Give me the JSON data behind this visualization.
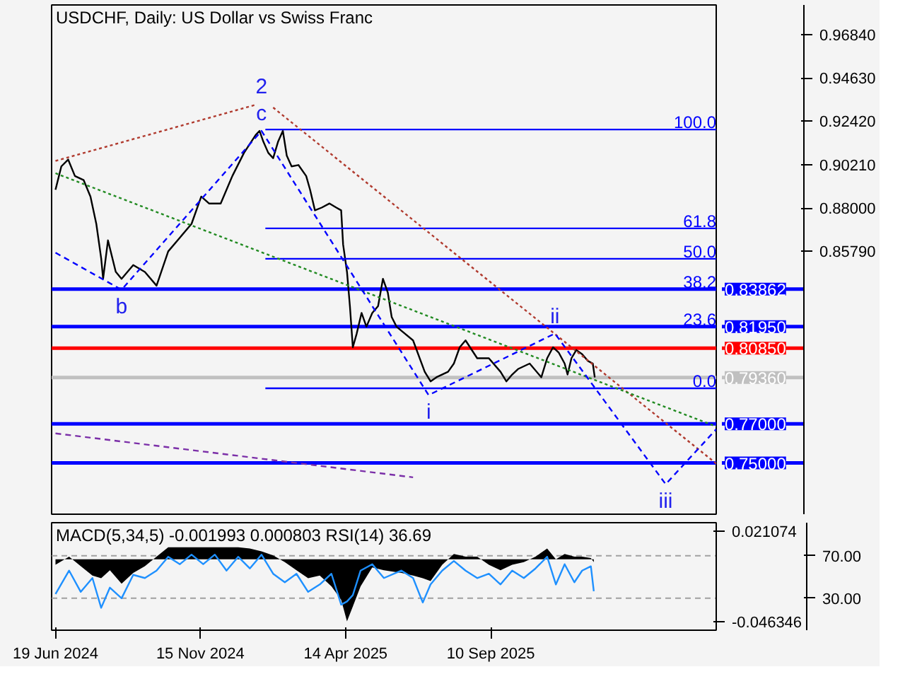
{
  "chart_data": [
    {
      "type": "line",
      "title": "USDCHF, Daily:  US Dollar vs Swiss Franc",
      "xlim": [
        "2024-06-15",
        "2026-04-30"
      ],
      "ylim": [
        0.7239,
        0.9835
      ],
      "yticks": [
        {
          "value": 0.9684,
          "label": "0.96840"
        },
        {
          "value": 0.9463,
          "label": "0.94630"
        },
        {
          "value": 0.9242,
          "label": "0.92420"
        },
        {
          "value": 0.9021,
          "label": "0.90210"
        },
        {
          "value": 0.88,
          "label": "0.88000"
        },
        {
          "value": 0.8579,
          "label": "0.85790"
        }
      ],
      "tick_labels": "y",
      "grid": false,
      "series": [
        {
          "color": "#000000",
          "line_style": "solid",
          "x": [
            "2024-06-19",
            "2024-06-25",
            "2024-07-02",
            "2024-07-09",
            "2024-07-18",
            "2024-07-25",
            "2024-07-31",
            "2024-08-05",
            "2024-08-07",
            "2024-08-12",
            "2024-08-20",
            "2024-08-26",
            "2024-09-07",
            "2024-09-19",
            "2024-10-01",
            "2024-10-13",
            "2024-10-25",
            "2024-11-06",
            "2024-11-16",
            "2024-11-24",
            "2024-12-06",
            "2024-12-18",
            "2024-12-30",
            "2025-01-11",
            "2025-01-15",
            "2025-01-19",
            "2025-01-24",
            "2025-01-29",
            "2025-02-03",
            "2025-02-08",
            "2025-02-12",
            "2025-02-17",
            "2025-02-24",
            "2025-03-04",
            "2025-03-08",
            "2025-03-13",
            "2025-03-20",
            "2025-03-28",
            "2025-04-04",
            "2025-04-09",
            "2025-04-11",
            "2025-04-15",
            "2025-04-18",
            "2025-04-21",
            "2025-04-25",
            "2025-04-30",
            "2025-05-05",
            "2025-05-11",
            "2025-05-17",
            "2025-05-22",
            "2025-05-27",
            "2025-05-31",
            "2025-06-05",
            "2025-06-10",
            "2025-06-22",
            "2025-07-04",
            "2025-07-10",
            "2025-07-16",
            "2025-07-28",
            "2025-08-03",
            "2025-08-09",
            "2025-08-15",
            "2025-08-27",
            "2025-09-08",
            "2025-09-20",
            "2025-09-26",
            "2025-10-02",
            "2025-10-08",
            "2025-10-20",
            "2025-11-01",
            "2025-11-07",
            "2025-11-13",
            "2025-11-19",
            "2025-11-25",
            "2025-11-28",
            "2025-12-02",
            "2025-12-07",
            "2025-12-13",
            "2025-12-19",
            "2025-12-24",
            "2025-12-26"
          ],
          "values": [
            0.8893,
            0.9012,
            0.9047,
            0.8963,
            0.8942,
            0.8858,
            0.8719,
            0.8544,
            0.8439,
            0.8635,
            0.8475,
            0.8439,
            0.8509,
            0.8474,
            0.8404,
            0.8579,
            0.8649,
            0.8719,
            0.8858,
            0.8823,
            0.8823,
            0.8963,
            0.9081,
            0.9172,
            0.9193,
            0.9137,
            0.9081,
            0.9054,
            0.9137,
            0.9193,
            0.9067,
            0.9012,
            0.9019,
            0.8963,
            0.8893,
            0.8788,
            0.8802,
            0.8823,
            0.8802,
            0.8788,
            0.8614,
            0.8474,
            0.83,
            0.809,
            0.816,
            0.8265,
            0.8195,
            0.8265,
            0.83,
            0.8439,
            0.8369,
            0.8244,
            0.8195,
            0.8174,
            0.8125,
            0.7965,
            0.7916,
            0.7937,
            0.7965,
            0.8007,
            0.809,
            0.8125,
            0.8034,
            0.8034,
            0.7965,
            0.7916,
            0.7951,
            0.7979,
            0.8007,
            0.7937,
            0.8034,
            0.809,
            0.8062,
            0.8007,
            0.7951,
            0.8034,
            0.8076,
            0.8055,
            0.802,
            0.8007,
            0.7936
          ]
        },
        {
          "color": "#0000ff",
          "line_style": "solid",
          "x": [
            "2025-01-21",
            "2026-04-30"
          ],
          "values": [
            0.92,
            0.92
          ]
        },
        {
          "color": "#0000ff",
          "line_style": "solid",
          "x": [
            "2025-01-21",
            "2026-04-30"
          ],
          "values": [
            0.8696,
            0.8696
          ]
        },
        {
          "color": "#0000ff",
          "line_style": "solid",
          "x": [
            "2025-01-21",
            "2026-04-30"
          ],
          "values": [
            0.8541,
            0.8541
          ]
        },
        {
          "color": "#0000ff",
          "line_style": "solid",
          "x": [
            "2025-01-21",
            "2026-04-30"
          ],
          "values": [
            0.7881,
            0.7881
          ]
        },
        {
          "color": "#b03a2e",
          "line_style": "dotted",
          "x": [
            "2024-06-19",
            "2025-01-11"
          ],
          "values": [
            0.904,
            0.9326
          ]
        },
        {
          "color": "#b03a2e",
          "line_style": "dotted",
          "x": [
            "2025-01-29",
            "2026-04-30"
          ],
          "values": [
            0.9312,
            0.7497
          ]
        },
        {
          "color": "#228b22",
          "line_style": "dotted",
          "x": [
            "2024-06-19",
            "2026-04-30"
          ],
          "values": [
            0.8977,
            0.7686
          ]
        },
        {
          "color": "#0000ff",
          "line_style": "dashed",
          "x": [
            "2024-06-19",
            "2024-08-26",
            "2025-01-17",
            "2025-07-08",
            "2025-11-15",
            "2026-03-09",
            "2026-04-30"
          ],
          "values": [
            0.8572,
            0.8383,
            0.9193,
            0.7846,
            0.816,
            0.7392,
            0.7672
          ]
        },
        {
          "color": "#7b2fa8",
          "line_style": "dashed",
          "x": [
            "2024-06-19",
            "2025-06-22"
          ],
          "values": [
            0.7651,
            0.7427
          ]
        }
      ],
      "ref_lines": [
        {
          "axis": "y",
          "value": 0.83862,
          "label": "0.83862",
          "color": "#0000ff"
        },
        {
          "axis": "y",
          "value": 0.8195,
          "label": "0.81950",
          "color": "#0000ff"
        },
        {
          "axis": "y",
          "value": 0.8085,
          "label": "0.80850",
          "color": "#ff0000"
        },
        {
          "axis": "y",
          "value": 0.7936,
          "label": "0.79360",
          "color": "#c0c0c0"
        },
        {
          "axis": "y",
          "value": 0.77,
          "label": "0.77000",
          "color": "#0000ff"
        },
        {
          "axis": "y",
          "value": 0.75,
          "label": "0.75000",
          "color": "#0000ff"
        }
      ],
      "annotations": [
        {
          "text": "c",
          "x": "2025-01-17",
          "y": 0.9193
        },
        {
          "text": "2",
          "x": "2025-01-17",
          "y": 0.9193
        },
        {
          "text": "b",
          "x": "2024-08-26",
          "y": 0.8383
        },
        {
          "text": "i",
          "x": "2025-07-08",
          "y": 0.7846
        },
        {
          "text": "ii",
          "x": "2025-11-15",
          "y": 0.816
        },
        {
          "text": "iii",
          "x": "2026-03-09",
          "y": 0.7392
        },
        {
          "text": "100.0",
          "x": "2026-04-30",
          "y": 0.92
        },
        {
          "text": "61.8",
          "x": "2026-04-30",
          "y": 0.8696
        },
        {
          "text": "50.0",
          "x": "2026-04-30",
          "y": 0.8541
        },
        {
          "text": "38.2",
          "x": "2026-04-30",
          "y": 0.83862
        },
        {
          "text": "23.6",
          "x": "2026-04-30",
          "y": 0.8195
        },
        {
          "text": "0.0",
          "x": "2026-04-30",
          "y": 0.7881
        }
      ]
    },
    {
      "type": "area",
      "title": "MACD(5,34,5) -0.001993 0.000803 RSI(14) 36.69",
      "xlim": [
        "2024-06-15",
        "2026-04-30"
      ],
      "ylim": [
        -0.0525,
        0.0272
      ],
      "yticks": [
        {
          "value": 0.021074,
          "label": "0.021074"
        },
        {
          "value": -0.046346,
          "label": "-0.046346"
        }
      ],
      "y2lim": [
        0,
        101
      ],
      "y2ticks": [
        {
          "value": 70,
          "label": "70.00"
        },
        {
          "value": 30,
          "label": "30.00"
        }
      ],
      "xticks": [
        {
          "value": "2024-06-19",
          "label": "19 Jun 2024"
        },
        {
          "value": "2024-11-15",
          "label": "15 Nov 2024"
        },
        {
          "value": "2025-04-14",
          "label": "14 Apr 2025"
        },
        {
          "value": "2025-09-10",
          "label": "10 Sep 2025"
        }
      ],
      "grid": false,
      "x": [
        "2024-06-19",
        "2024-07-03",
        "2024-07-15",
        "2024-07-27",
        "2024-08-05",
        "2024-08-14",
        "2024-08-26",
        "2024-09-07",
        "2024-09-19",
        "2024-10-01",
        "2024-10-13",
        "2024-10-25",
        "2024-11-06",
        "2024-11-18",
        "2024-11-30",
        "2024-12-12",
        "2024-12-24",
        "2025-01-05",
        "2025-01-17",
        "2025-01-29",
        "2025-02-10",
        "2025-02-22",
        "2025-03-06",
        "2025-03-18",
        "2025-03-30",
        "2025-04-09",
        "2025-04-15",
        "2025-04-21",
        "2025-04-29",
        "2025-05-11",
        "2025-05-23",
        "2025-06-10",
        "2025-06-22",
        "2025-07-02",
        "2025-07-10",
        "2025-07-22",
        "2025-08-03",
        "2025-08-15",
        "2025-08-27",
        "2025-09-08",
        "2025-09-20",
        "2025-10-02",
        "2025-10-14",
        "2025-10-26",
        "2025-11-07",
        "2025-11-16",
        "2025-11-25",
        "2025-12-05",
        "2025-12-13",
        "2025-12-22",
        "2025-12-25"
      ],
      "series": [
        {
          "type": "area",
          "color": "#000000",
          "values": [
            -0.004,
            0.002,
            -0.005,
            -0.012,
            -0.014,
            -0.008,
            -0.018,
            -0.01,
            -0.005,
            0.002,
            0.009,
            0.009,
            0.009,
            0.009,
            0.009,
            0.009,
            0.009,
            0.008,
            0.006,
            0.003,
            -0.002,
            -0.008,
            -0.014,
            -0.012,
            -0.02,
            -0.03,
            -0.046,
            -0.035,
            -0.02,
            -0.006,
            -0.008,
            -0.01,
            -0.012,
            -0.014,
            -0.016,
            -0.004,
            0.004,
            0.002,
            0.002,
            -0.004,
            -0.008,
            -0.004,
            -0.002,
            0.002,
            0.008,
            0.0,
            0.004,
            0.002,
            0.002,
            0.001,
            -0.001993
          ]
        },
        {
          "type": "line",
          "axis": "y2",
          "color": "#1e90ff",
          "line_style": "solid",
          "values": [
            34,
            56,
            36,
            49,
            21,
            40,
            30,
            52,
            49,
            56,
            69,
            62,
            71,
            62,
            71,
            56,
            69,
            58,
            71,
            53,
            45,
            53,
            36,
            43,
            53,
            24,
            27,
            33,
            56,
            62,
            49,
            56,
            49,
            26,
            43,
            56,
            65,
            56,
            49,
            53,
            43,
            56,
            49,
            58,
            69,
            43,
            62,
            45,
            56,
            60,
            36.69
          ]
        }
      ],
      "ref_lines": [
        {
          "axis": "y2",
          "value": 70,
          "color": "#a0a0a0",
          "line_style": "dashed"
        },
        {
          "axis": "y2",
          "value": 30,
          "color": "#a0a0a0",
          "line_style": "dashed"
        }
      ]
    }
  ]
}
